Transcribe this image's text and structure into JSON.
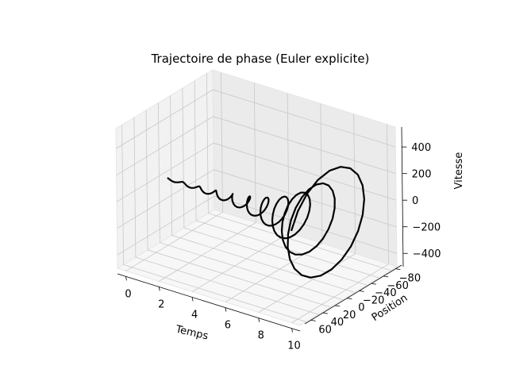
{
  "chart_data": {
    "type": "line",
    "projection": "3d",
    "title": "Trajectoire de phase (Euler explicite)",
    "xlabel": "Temps",
    "ylabel": "Position",
    "zlabel": "Vitesse",
    "x_ticks": [
      "0",
      "2",
      "4",
      "6",
      "8",
      "10"
    ],
    "y_ticks": [
      "−80",
      "−60",
      "−40",
      "−20",
      "0",
      "20",
      "40",
      "60"
    ],
    "z_ticks": [
      "−400",
      "−200",
      "0",
      "200",
      "400"
    ],
    "xlim": [
      -0.5,
      10.5
    ],
    "ylim": [
      -90,
      70
    ],
    "zlim": [
      -500,
      550
    ],
    "grid": true,
    "line_color": "#000000",
    "series": [
      {
        "description": "growing spiral: oscillation with amplitude increasing over time",
        "amplitude_start": 1,
        "amplitude_end": 75,
        "velocity_end": 480,
        "t_start": 0,
        "t_end": 10,
        "samples": 220,
        "omega": 6.4
      }
    ]
  }
}
